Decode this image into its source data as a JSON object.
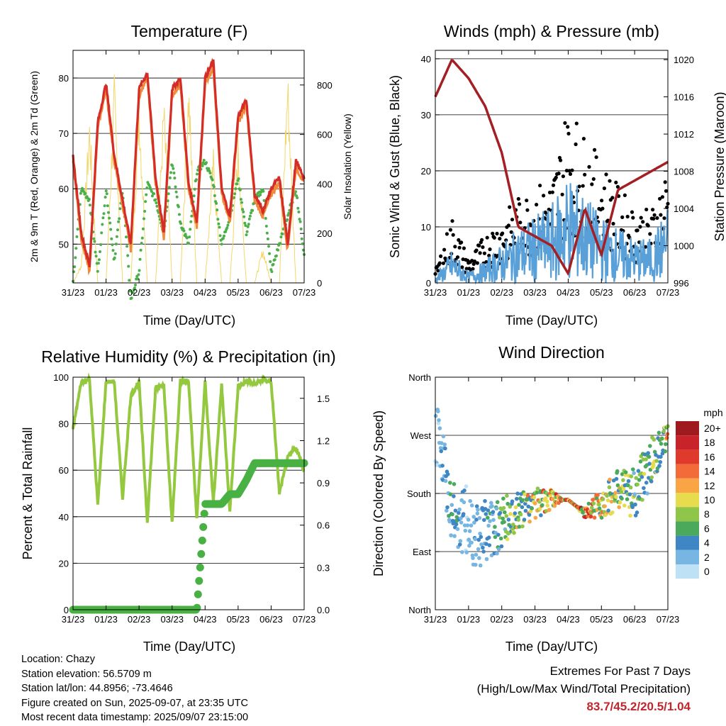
{
  "charts": {
    "temperature": {
      "title": "Temperature (F)",
      "xlabel": "Time (Day/UTC)",
      "ylabel": "2m & 9m T (Red, Orange) & 2m Td (Green)",
      "y2label": "Solar Insolation (Yellow)",
      "yticks": [
        "50",
        "60",
        "70",
        "80"
      ],
      "y2ticks": [
        "0",
        "200",
        "400",
        "600",
        "800"
      ],
      "xticks": [
        "31/23",
        "01/23",
        "02/23",
        "03/23",
        "04/23",
        "05/23",
        "06/23",
        "07/23"
      ]
    },
    "winds": {
      "title": "Winds (mph) & Pressure (mb)",
      "xlabel": "Time (Day/UTC)",
      "ylabel": "Sonic Wind & Gust (Blue, Black)",
      "y2label": "Station Pressure (Maroon)",
      "yticks": [
        "0",
        "10",
        "20",
        "30",
        "40"
      ],
      "y2ticks": [
        "996",
        "1000",
        "1004",
        "1008",
        "1012",
        "1016",
        "1020"
      ],
      "xticks": [
        "31/23",
        "01/23",
        "02/23",
        "03/23",
        "04/23",
        "05/23",
        "06/23",
        "07/23"
      ]
    },
    "humidity": {
      "title": "Relative Humidity (%) & Precipitation (in)",
      "xlabel": "Time (Day/UTC)",
      "ylabel": "Percent & Total Rainfall",
      "yticks": [
        "0",
        "20",
        "40",
        "60",
        "80",
        "100"
      ],
      "y2ticks": [
        "0.0",
        "0.3",
        "0.6",
        "0.9",
        "1.2",
        "1.5"
      ],
      "xticks": [
        "31/23",
        "01/23",
        "02/23",
        "03/23",
        "04/23",
        "05/23",
        "06/23",
        "07/23"
      ]
    },
    "direction": {
      "title": "Wind Direction",
      "xlabel": "Time (Day/UTC)",
      "ylabel": "Direction (Colored By Speed)",
      "yticks": [
        "North",
        "East",
        "South",
        "West",
        "North"
      ],
      "xticks": [
        "31/23",
        "01/23",
        "02/23",
        "03/23",
        "04/23",
        "05/23",
        "06/23",
        "07/23"
      ],
      "legend_title": "mph",
      "legend_labels": [
        "20+",
        "18",
        "16",
        "14",
        "12",
        "10",
        "8",
        "6",
        "4",
        "2",
        "0"
      ],
      "legend_colors": [
        "#9e1a1f",
        "#c8232a",
        "#e03a2c",
        "#f26b38",
        "#f9a546",
        "#e6dc4e",
        "#8fc649",
        "#4aa95a",
        "#3f86c4",
        "#77b5e2",
        "#bfe1f5"
      ]
    }
  },
  "chart_data": [
    {
      "type": "line",
      "name": "temperature",
      "x": [
        0,
        0.25,
        0.5,
        0.75,
        1,
        1.25,
        1.5,
        1.75,
        2,
        2.25,
        2.5,
        2.75,
        3,
        3.25,
        3.5,
        3.75,
        4,
        4.25,
        4.5,
        4.75,
        5,
        5.25,
        5.5,
        5.75,
        6,
        6.25,
        6.5,
        6.75,
        7
      ],
      "series": [
        {
          "values": [
            66,
            52,
            46,
            72,
            79,
            66,
            58,
            50,
            78,
            81,
            62,
            52,
            78,
            80,
            61,
            54,
            80,
            83,
            60,
            55,
            73,
            76,
            59,
            56,
            60,
            62,
            50,
            65,
            62
          ]
        },
        {
          "values": [
            43,
            60,
            58,
            45,
            60,
            47,
            60,
            40,
            45,
            61,
            58,
            52,
            65,
            54,
            50,
            63,
            65,
            61,
            50,
            55,
            62,
            52,
            58,
            60,
            45,
            50,
            55,
            60,
            48
          ]
        }
      ],
      "y2_series": {
        "values": [
          0,
          80,
          700,
          0,
          0,
          850,
          0,
          0,
          800,
          0,
          0,
          780,
          0,
          0,
          870,
          0,
          0,
          550,
          0,
          0,
          600,
          0,
          0,
          150,
          0,
          0,
          900,
          0,
          0
        ]
      },
      "ylim": [
        43,
        85
      ],
      "y2lim": [
        0,
        940
      ]
    },
    {
      "type": "scatter",
      "name": "winds",
      "x": [
        0,
        0.5,
        1,
        1.5,
        2,
        2.5,
        3,
        3.5,
        4,
        4.5,
        5,
        5.5,
        6,
        6.5,
        7
      ],
      "series": [
        {
          "values": [
            1,
            6,
            2,
            4,
            7,
            10,
            12,
            14,
            20,
            16,
            12,
            10,
            8,
            8,
            14
          ]
        },
        {
          "values": [
            2,
            11,
            4,
            8,
            11,
            14,
            16,
            17,
            30,
            24,
            20,
            16,
            12,
            12,
            20
          ]
        }
      ],
      "y2_series": {
        "values": [
          1016,
          1020,
          1018,
          1015,
          1010,
          1002,
          1001,
          1000,
          997,
          1004,
          999,
          1006,
          1007,
          1008,
          1009
        ]
      },
      "ylim": [
        0,
        41.5
      ],
      "y2lim": [
        996,
        1021
      ]
    },
    {
      "type": "line",
      "name": "humidity",
      "x": [
        0,
        0.25,
        0.5,
        0.75,
        1,
        1.25,
        1.5,
        1.75,
        2,
        2.25,
        2.5,
        2.75,
        3,
        3.25,
        3.5,
        3.75,
        4,
        4.25,
        4.5,
        4.75,
        5,
        5.25,
        5.5,
        5.75,
        6,
        6.25,
        6.5,
        6.75,
        7
      ],
      "series": [
        {
          "values": [
            78,
            98,
            99,
            45,
            98,
            98,
            48,
            92,
            98,
            38,
            95,
            97,
            37,
            98,
            98,
            39,
            98,
            46,
            97,
            42,
            96,
            98,
            97,
            99,
            98,
            50,
            65,
            70,
            60
          ]
        }
      ],
      "y2_series": {
        "values": [
          0,
          0,
          0,
          0,
          0,
          0,
          0,
          0,
          0,
          0,
          0,
          0,
          0,
          0,
          0,
          0,
          0.75,
          0.75,
          0.75,
          0.82,
          0.82,
          0.92,
          1.04,
          1.04,
          1.04,
          1.04,
          1.04,
          1.04,
          1.04
        ]
      },
      "ylim": [
        0,
        100
      ],
      "y2lim": [
        0,
        1.65
      ]
    },
    {
      "type": "scatter",
      "name": "direction",
      "x": [
        0,
        0.5,
        1,
        1.5,
        2,
        2.5,
        3,
        3.5,
        4,
        4.5,
        5,
        5.5,
        6,
        6.5,
        7
      ],
      "series": [
        {
          "values": [
            290,
            150,
            130,
            120,
            135,
            150,
            165,
            170,
            170,
            150,
            165,
            185,
            180,
            230,
            270
          ]
        }
      ],
      "ylim": [
        0,
        360
      ]
    }
  ],
  "info": {
    "location": "Location: Chazy",
    "elevation": "Station elevation: 56.5709 m",
    "latlon": "Station lat/lon: 44.8956; -73.4646",
    "created": "Figure created on Sun, 2025-09-07, at 23:35 UTC",
    "recent": "Most recent data timestamp: 2025/09/07 23:15:00"
  },
  "extremes": {
    "line1": "Extremes For Past 7 Days",
    "line2": "(High/Low/Max Wind/Total Precipitation)",
    "values": "83.7/45.2/20.5/1.04"
  },
  "colors": {
    "temp2m": "#d42d27",
    "temp9m": "#f08a3a",
    "dew": "#4cb04a",
    "solar": "#f3d66b",
    "wind": "#5aa0d8",
    "gust": "#000000",
    "pressure": "#a31f24",
    "rh": "#94c83f",
    "precip": "#49b043"
  }
}
